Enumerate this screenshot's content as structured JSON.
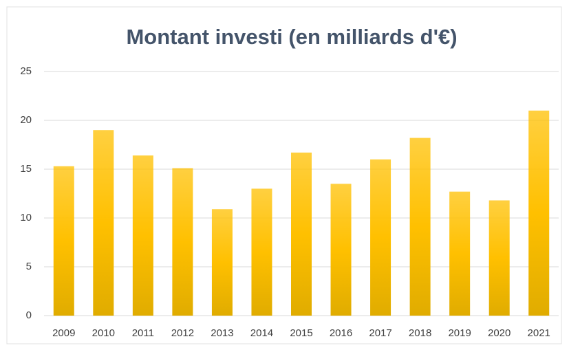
{
  "chart_data": {
    "type": "bar",
    "title": "Montant investi (en milliards d'€)",
    "categories": [
      "2009",
      "2010",
      "2011",
      "2012",
      "2013",
      "2014",
      "2015",
      "2016",
      "2017",
      "2018",
      "2019",
      "2020",
      "2021"
    ],
    "values": [
      15.3,
      19.0,
      16.4,
      15.1,
      10.9,
      13.0,
      16.7,
      13.5,
      16.0,
      18.2,
      12.7,
      11.8,
      21.0
    ],
    "color": "#ffc000",
    "ylim": [
      0,
      25
    ],
    "yticks": [
      0,
      5,
      10,
      15,
      20,
      25
    ],
    "grid": true
  }
}
